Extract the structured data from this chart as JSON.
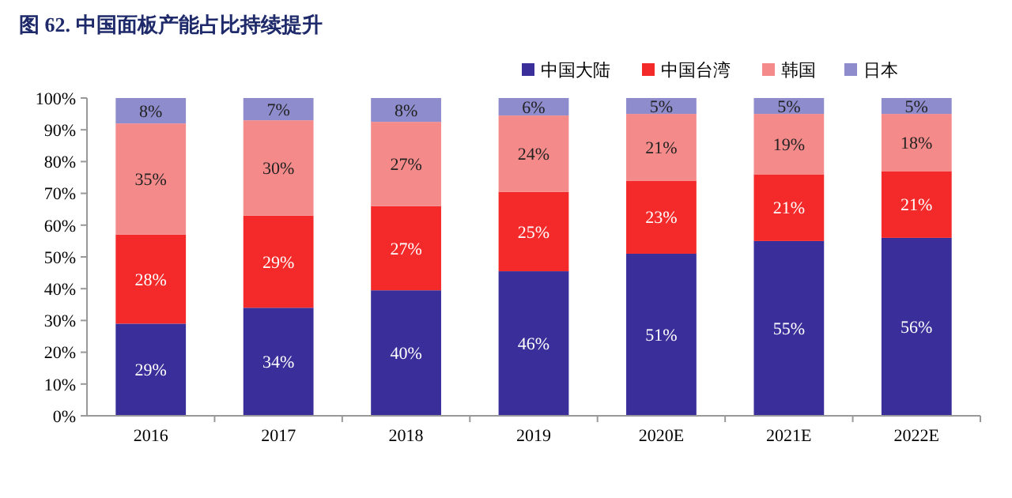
{
  "chart_data": {
    "type": "bar",
    "title": "图 62. 中国面板产能占比持续提升",
    "stacked": true,
    "categories": [
      "2016",
      "2017",
      "2018",
      "2019",
      "2020E",
      "2021E",
      "2022E"
    ],
    "series": [
      {
        "name": "中国大陆",
        "color": "#3a2f9a",
        "values": [
          29,
          34,
          39.5,
          45.5,
          51,
          55,
          56
        ],
        "value_labels": [
          "29%",
          "34%",
          "40%",
          "46%",
          "51%",
          "55%",
          "56%"
        ]
      },
      {
        "name": "中国台湾",
        "color": "#f42a2a",
        "values": [
          28,
          29,
          26.5,
          25,
          23,
          21,
          21
        ],
        "value_labels": [
          "28%",
          "29%",
          "27%",
          "25%",
          "23%",
          "21%",
          "21%"
        ]
      },
      {
        "name": "韩国",
        "color": "#f58a8a",
        "values": [
          35,
          30,
          26.5,
          24,
          21,
          19,
          18
        ],
        "value_labels": [
          "35%",
          "30%",
          "27%",
          "24%",
          "21%",
          "19%",
          "18%"
        ]
      },
      {
        "name": "日本",
        "color": "#8e8ccc",
        "values": [
          8,
          7,
          7.5,
          5.5,
          5,
          5,
          5
        ],
        "value_labels": [
          "8%",
          "7%",
          "8%",
          "6%",
          "5%",
          "5%",
          "5%"
        ]
      }
    ],
    "ylim": [
      0,
      100
    ],
    "yticks": [
      {
        "value": 0,
        "label": "0%"
      },
      {
        "value": 10,
        "label": "10%"
      },
      {
        "value": 20,
        "label": "20%"
      },
      {
        "value": 30,
        "label": "30%"
      },
      {
        "value": 40,
        "label": "40%"
      },
      {
        "value": 50,
        "label": "50%"
      },
      {
        "value": 60,
        "label": "60%"
      },
      {
        "value": 70,
        "label": "70%"
      },
      {
        "value": 80,
        "label": "80%"
      },
      {
        "value": 90,
        "label": "90%"
      },
      {
        "value": 100,
        "label": "100%"
      }
    ],
    "legend": "top right",
    "grid": false
  }
}
